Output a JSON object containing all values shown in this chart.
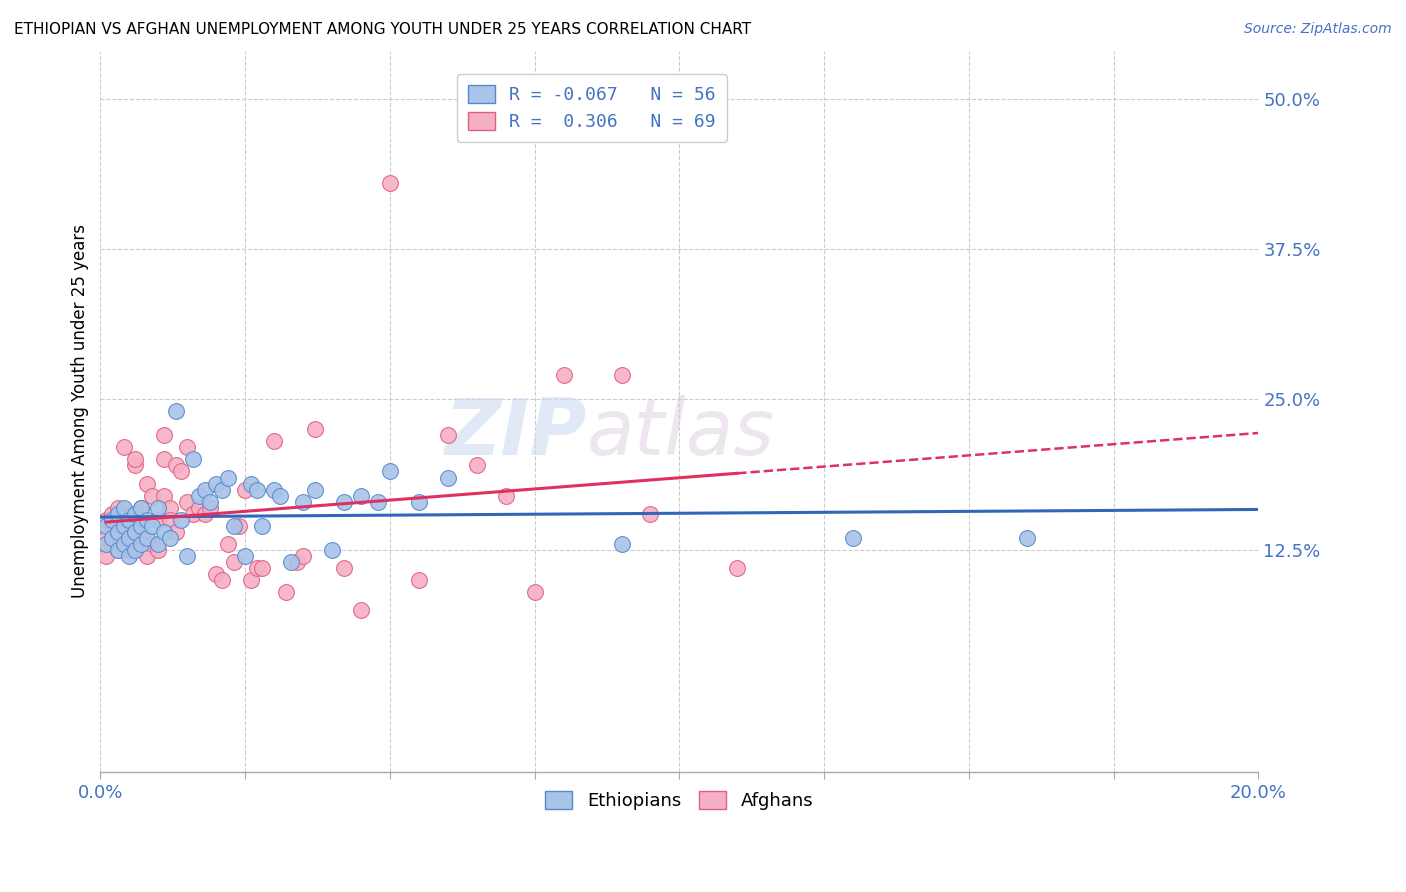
{
  "title": "ETHIOPIAN VS AFGHAN UNEMPLOYMENT AMONG YOUTH UNDER 25 YEARS CORRELATION CHART",
  "source": "Source: ZipAtlas.com",
  "ylabel": "Unemployment Among Youth under 25 years",
  "xlim": [
    0.0,
    0.2
  ],
  "ylim": [
    -0.06,
    0.54
  ],
  "yticks_right": [
    0.125,
    0.25,
    0.375,
    0.5
  ],
  "ytick_labels_right": [
    "12.5%",
    "25.0%",
    "37.5%",
    "50.0%"
  ],
  "xticks": [
    0.0,
    0.025,
    0.05,
    0.075,
    0.1,
    0.125,
    0.15,
    0.175,
    0.2
  ],
  "blue_color": "#a8c4e8",
  "pink_color": "#f5b0c5",
  "blue_edge_color": "#5588cc",
  "pink_edge_color": "#e06080",
  "blue_line_color": "#3366bb",
  "pink_line_color": "#e03060",
  "watermark_zip": "ZIP",
  "watermark_atlas": "atlas",
  "blue_scatter_x": [
    0.001,
    0.001,
    0.002,
    0.002,
    0.003,
    0.003,
    0.003,
    0.004,
    0.004,
    0.004,
    0.005,
    0.005,
    0.005,
    0.006,
    0.006,
    0.006,
    0.007,
    0.007,
    0.007,
    0.008,
    0.008,
    0.009,
    0.01,
    0.01,
    0.011,
    0.012,
    0.013,
    0.014,
    0.015,
    0.016,
    0.017,
    0.018,
    0.019,
    0.02,
    0.021,
    0.022,
    0.023,
    0.025,
    0.026,
    0.027,
    0.028,
    0.03,
    0.031,
    0.033,
    0.035,
    0.037,
    0.04,
    0.042,
    0.045,
    0.048,
    0.05,
    0.055,
    0.06,
    0.09,
    0.13,
    0.16
  ],
  "blue_scatter_y": [
    0.145,
    0.13,
    0.135,
    0.15,
    0.125,
    0.14,
    0.155,
    0.13,
    0.145,
    0.16,
    0.12,
    0.135,
    0.15,
    0.125,
    0.14,
    0.155,
    0.13,
    0.145,
    0.16,
    0.135,
    0.15,
    0.145,
    0.13,
    0.16,
    0.14,
    0.135,
    0.24,
    0.15,
    0.12,
    0.2,
    0.17,
    0.175,
    0.165,
    0.18,
    0.175,
    0.185,
    0.145,
    0.12,
    0.18,
    0.175,
    0.145,
    0.175,
    0.17,
    0.115,
    0.165,
    0.175,
    0.125,
    0.165,
    0.17,
    0.165,
    0.19,
    0.165,
    0.185,
    0.13,
    0.135,
    0.135
  ],
  "pink_scatter_x": [
    0.001,
    0.001,
    0.001,
    0.002,
    0.002,
    0.002,
    0.003,
    0.003,
    0.003,
    0.004,
    0.004,
    0.004,
    0.005,
    0.005,
    0.005,
    0.005,
    0.006,
    0.006,
    0.006,
    0.006,
    0.007,
    0.007,
    0.007,
    0.008,
    0.008,
    0.009,
    0.009,
    0.01,
    0.01,
    0.011,
    0.011,
    0.011,
    0.012,
    0.012,
    0.013,
    0.013,
    0.014,
    0.015,
    0.015,
    0.016,
    0.017,
    0.018,
    0.019,
    0.02,
    0.021,
    0.022,
    0.023,
    0.024,
    0.025,
    0.026,
    0.027,
    0.028,
    0.03,
    0.032,
    0.034,
    0.035,
    0.037,
    0.042,
    0.045,
    0.05,
    0.055,
    0.06,
    0.065,
    0.07,
    0.075,
    0.08,
    0.09,
    0.095,
    0.11
  ],
  "pink_scatter_y": [
    0.15,
    0.135,
    0.12,
    0.145,
    0.13,
    0.155,
    0.14,
    0.125,
    0.16,
    0.135,
    0.15,
    0.21,
    0.125,
    0.14,
    0.13,
    0.155,
    0.125,
    0.195,
    0.2,
    0.15,
    0.14,
    0.16,
    0.135,
    0.12,
    0.18,
    0.13,
    0.17,
    0.15,
    0.125,
    0.2,
    0.17,
    0.22,
    0.16,
    0.15,
    0.14,
    0.195,
    0.19,
    0.21,
    0.165,
    0.155,
    0.16,
    0.155,
    0.16,
    0.105,
    0.1,
    0.13,
    0.115,
    0.145,
    0.175,
    0.1,
    0.11,
    0.11,
    0.215,
    0.09,
    0.115,
    0.12,
    0.225,
    0.11,
    0.075,
    0.43,
    0.1,
    0.22,
    0.195,
    0.17,
    0.09,
    0.27,
    0.27,
    0.155,
    0.11
  ]
}
